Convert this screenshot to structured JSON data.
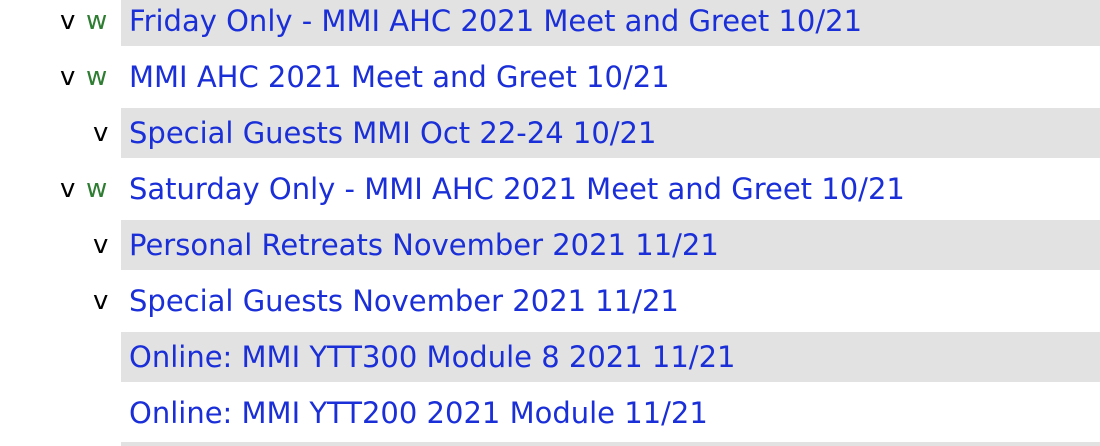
{
  "events": [
    {
      "v": "v",
      "w": "w",
      "indent": "outer",
      "shaded": true,
      "title": "Friday Only - MMI AHC 2021 Meet and Greet 10/21"
    },
    {
      "v": "v",
      "w": "w",
      "indent": "outer",
      "shaded": false,
      "title": "MMI AHC 2021 Meet and Greet 10/21"
    },
    {
      "v": "v",
      "w": "",
      "indent": "inner",
      "shaded": true,
      "title": "Special Guests MMI Oct 22-24 10/21"
    },
    {
      "v": "v",
      "w": "w",
      "indent": "outer",
      "shaded": false,
      "title": "Saturday Only - MMI AHC 2021 Meet and Greet 10/21"
    },
    {
      "v": "v",
      "w": "",
      "indent": "inner",
      "shaded": true,
      "title": "Personal Retreats November 2021 11/21"
    },
    {
      "v": "v",
      "w": "",
      "indent": "inner",
      "shaded": false,
      "title": "Special Guests November 2021 11/21"
    },
    {
      "v": "",
      "w": "",
      "indent": "none",
      "shaded": true,
      "title": "Online: MMI YTT300 Module 8 2021 11/21"
    },
    {
      "v": "",
      "w": "",
      "indent": "none",
      "shaded": false,
      "title": "Online: MMI YTT200 2021 Module 11/21"
    }
  ],
  "colors": {
    "link": "#1a2fd8",
    "w_marker": "#2e7d32",
    "row_shade": "#e2e2e2"
  }
}
